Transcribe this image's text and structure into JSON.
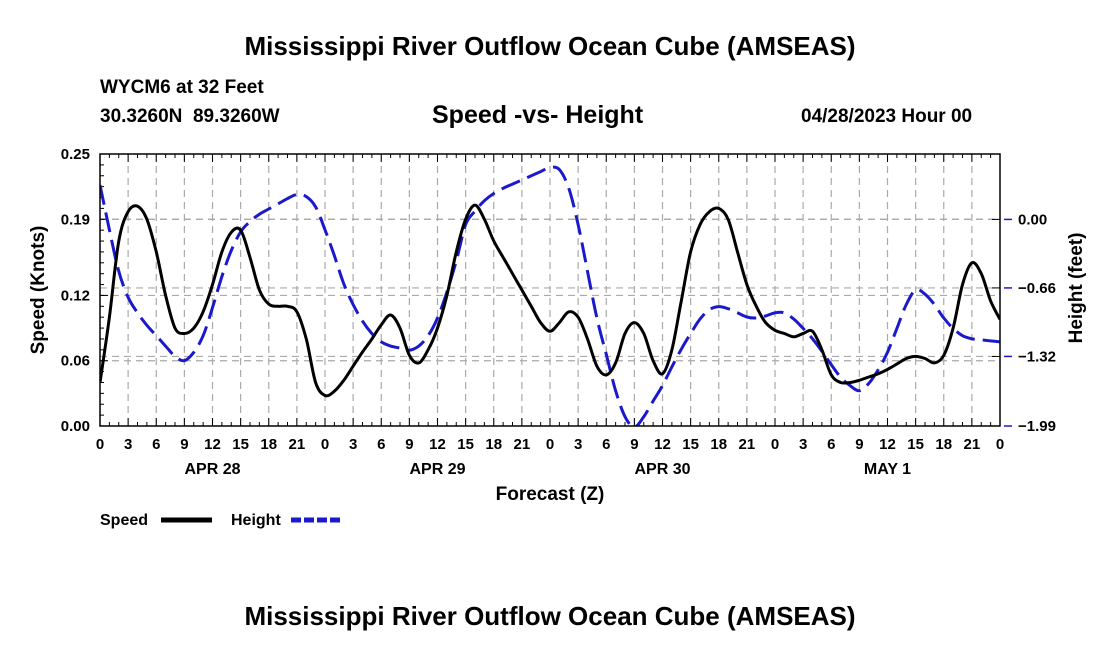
{
  "header": {
    "title": "Mississippi River Outflow Ocean Cube (AMSEAS)",
    "station": "WYCM6 at 32 Feet",
    "coords": "30.3260N  89.3260W",
    "chart_title": "Speed -vs- Height",
    "datetime": "04/28/2023 Hour 00"
  },
  "footer": {
    "title": "Mississippi River Outflow Ocean Cube (AMSEAS)"
  },
  "colors": {
    "speed": "#000000",
    "height": "#1a1acc",
    "grid": "#aaaaaa"
  },
  "chart_data": {
    "type": "line",
    "title": "Speed -vs- Height",
    "xlabel": "Forecast (Z)",
    "ylabel": "Speed (Knots)",
    "ylabel_right": "Height (feet)",
    "x_range": [
      0,
      96
    ],
    "x_ticks": [
      0,
      3,
      6,
      9,
      12,
      15,
      18,
      21,
      24,
      27,
      30,
      33,
      36,
      39,
      42,
      45,
      48,
      51,
      54,
      57,
      60,
      63,
      66,
      69,
      72,
      75,
      78,
      81,
      84,
      87,
      90,
      93,
      96
    ],
    "x_tick_labels": [
      "0",
      "3",
      "6",
      "9",
      "12",
      "15",
      "18",
      "21",
      "0",
      "3",
      "6",
      "9",
      "12",
      "15",
      "18",
      "21",
      "0",
      "3",
      "6",
      "9",
      "12",
      "15",
      "18",
      "21",
      "0",
      "3",
      "6",
      "9",
      "12",
      "15",
      "18",
      "21",
      "0"
    ],
    "date_labels": [
      {
        "text": "APR 28",
        "at": 12
      },
      {
        "text": "APR 29",
        "at": 36
      },
      {
        "text": "APR 30",
        "at": 60
      },
      {
        "text": "MAY 1",
        "at": 84
      }
    ],
    "ylim_left": [
      0,
      0.25
    ],
    "y_ticks_left": [
      0.0,
      0.06,
      0.12,
      0.19,
      0.25
    ],
    "y_tick_labels_left": [
      "0.00",
      "0.06",
      "0.12",
      "0.19",
      "0.25"
    ],
    "ylim_right": [
      -1.99,
      0.63
    ],
    "y_ticks_right": [
      0.0,
      -0.66,
      -1.32,
      -1.99
    ],
    "y_tick_labels_right": [
      "0.00",
      "−0.66",
      "−1.32",
      "−1.99"
    ],
    "legend": [
      {
        "name": "Speed",
        "style": "solid"
      },
      {
        "name": "Height",
        "style": "dashed"
      }
    ],
    "series": [
      {
        "name": "Speed",
        "axis": "left",
        "style": "solid",
        "x": [
          0,
          1,
          2,
          3,
          4,
          5,
          6,
          7,
          8,
          9,
          10,
          11,
          12,
          13,
          14,
          15,
          16,
          17,
          18,
          19,
          20,
          21,
          22,
          23,
          24,
          25,
          26,
          27,
          28,
          29,
          30,
          31,
          32,
          33,
          34,
          35,
          36,
          37,
          38,
          39,
          40,
          41,
          42,
          43,
          44,
          45,
          46,
          47,
          48,
          49,
          50,
          51,
          52,
          53,
          54,
          55,
          56,
          57,
          58,
          59,
          60,
          61,
          62,
          63,
          64,
          65,
          66,
          67,
          68,
          69,
          70,
          71,
          72,
          73,
          74,
          75,
          76,
          77,
          78,
          79,
          80,
          81,
          82,
          83,
          84,
          85,
          86,
          87,
          88,
          89,
          90,
          91,
          92,
          93,
          94,
          95,
          96
        ],
        "values": [
          0.04,
          0.1,
          0.17,
          0.197,
          0.202,
          0.19,
          0.16,
          0.12,
          0.09,
          0.085,
          0.09,
          0.105,
          0.13,
          0.16,
          0.178,
          0.18,
          0.155,
          0.125,
          0.112,
          0.11,
          0.11,
          0.105,
          0.08,
          0.04,
          0.028,
          0.032,
          0.042,
          0.055,
          0.068,
          0.08,
          0.093,
          0.102,
          0.09,
          0.065,
          0.058,
          0.07,
          0.09,
          0.12,
          0.16,
          0.19,
          0.203,
          0.19,
          0.17,
          0.155,
          0.14,
          0.125,
          0.11,
          0.095,
          0.087,
          0.095,
          0.105,
          0.1,
          0.08,
          0.055,
          0.047,
          0.058,
          0.085,
          0.095,
          0.085,
          0.06,
          0.048,
          0.07,
          0.115,
          0.16,
          0.185,
          0.197,
          0.2,
          0.19,
          0.16,
          0.13,
          0.11,
          0.095,
          0.088,
          0.085,
          0.082,
          0.085,
          0.087,
          0.07,
          0.047,
          0.04,
          0.04,
          0.042,
          0.045,
          0.048,
          0.052,
          0.057,
          0.062,
          0.064,
          0.062,
          0.058,
          0.065,
          0.09,
          0.13,
          0.15,
          0.14,
          0.115,
          0.098
        ]
      },
      {
        "name": "Height",
        "axis": "right",
        "style": "dashed",
        "x": [
          0,
          1,
          2,
          3,
          4,
          5,
          6,
          7,
          8,
          9,
          10,
          11,
          12,
          13,
          14,
          15,
          16,
          17,
          18,
          19,
          20,
          21,
          22,
          23,
          24,
          25,
          26,
          27,
          28,
          29,
          30,
          31,
          32,
          33,
          34,
          35,
          36,
          37,
          38,
          39,
          40,
          41,
          42,
          43,
          44,
          45,
          46,
          47,
          48,
          49,
          50,
          51,
          52,
          53,
          54,
          55,
          56,
          57,
          58,
          59,
          60,
          61,
          62,
          63,
          64,
          65,
          66,
          67,
          68,
          69,
          70,
          71,
          72,
          73,
          74,
          75,
          76,
          77,
          78,
          79,
          80,
          81,
          82,
          83,
          84,
          85,
          86,
          87,
          88,
          89,
          90,
          91,
          92,
          93,
          94,
          95,
          96
        ],
        "values": [
          0.33,
          -0.1,
          -0.5,
          -0.75,
          -0.9,
          -1.02,
          -1.12,
          -1.22,
          -1.32,
          -1.36,
          -1.28,
          -1.12,
          -0.85,
          -0.55,
          -0.3,
          -0.12,
          -0.02,
          0.05,
          0.1,
          0.15,
          0.2,
          0.24,
          0.22,
          0.12,
          -0.1,
          -0.35,
          -0.62,
          -0.82,
          -0.98,
          -1.1,
          -1.18,
          -1.22,
          -1.24,
          -1.26,
          -1.22,
          -1.12,
          -0.95,
          -0.7,
          -0.4,
          -0.05,
          0.08,
          0.18,
          0.25,
          0.3,
          0.34,
          0.38,
          0.42,
          0.46,
          0.5,
          0.48,
          0.3,
          -0.05,
          -0.5,
          -0.95,
          -1.3,
          -1.65,
          -1.9,
          -2.0,
          -1.9,
          -1.75,
          -1.6,
          -1.42,
          -1.25,
          -1.1,
          -0.96,
          -0.87,
          -0.84,
          -0.86,
          -0.9,
          -0.94,
          -0.95,
          -0.93,
          -0.9,
          -0.9,
          -0.96,
          -1.05,
          -1.15,
          -1.27,
          -1.4,
          -1.52,
          -1.6,
          -1.65,
          -1.58,
          -1.45,
          -1.28,
          -1.05,
          -0.82,
          -0.68,
          -0.72,
          -0.82,
          -0.95,
          -1.05,
          -1.12,
          -1.15,
          -1.16,
          -1.17,
          -1.18
        ]
      }
    ]
  }
}
